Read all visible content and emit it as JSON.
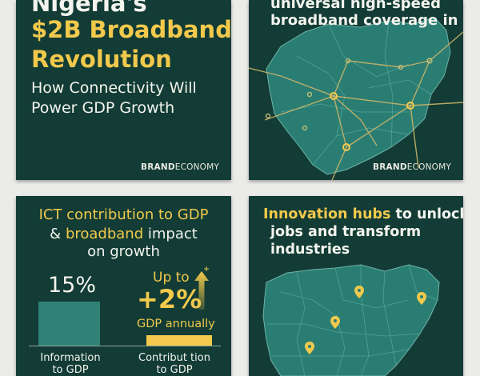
{
  "card1": {
    "title_line1": "Nigeria's",
    "title_line2": "$2B Broadband",
    "title_line3": "Revolution",
    "subtitle_line1": "How Connectivity Will",
    "subtitle_line2": "Power GDP Growth",
    "brand_a": "BRAND",
    "brand_b": "ECONOMY"
  },
  "card2": {
    "heading_line1": "universal high-speed",
    "heading_line2": "broadband coverage in",
    "brand_a": "BRAND",
    "brand_b": "ECONOMY"
  },
  "card3": {
    "heading_gold1": "ICT contribution to GDP",
    "heading_amp": "& ",
    "heading_gold2": "broadband",
    "heading_rest": " impact",
    "heading_line3": "on growth",
    "left_value": "15%",
    "left_label_line1": "Information",
    "left_label_line2": "to GDP",
    "right_upto": "Up to",
    "right_value": "+2%",
    "right_caption": "GDP annually",
    "right_label_line1": "Contribut tion",
    "right_label_line2": "to GDP"
  },
  "card4": {
    "heading_gold": "Innovation hubs",
    "heading_rest": " to unlock",
    "heading_line2": "jobs and transform",
    "heading_line3": "industries"
  },
  "colors": {
    "card_bg": "#123c35",
    "map_fill": "#2a7d73",
    "accent_gold": "#f2c94c",
    "text_white": "#f4f4ee"
  }
}
